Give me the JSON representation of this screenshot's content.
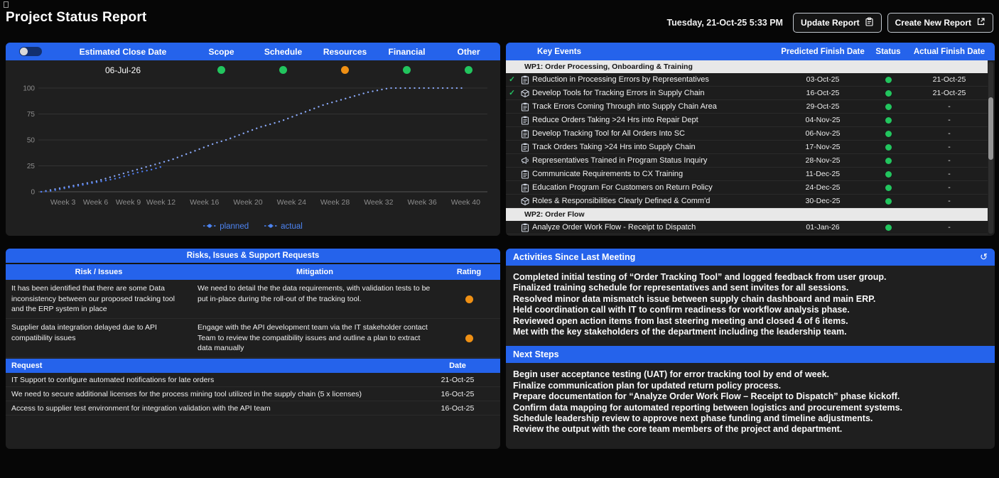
{
  "page": {
    "title": "Project Status Report",
    "datetime": "Tuesday, 21-Oct-25 5:33 PM"
  },
  "toolbar": {
    "update_label": "Update Report",
    "create_label": "Create New Report"
  },
  "status_panel": {
    "columns": [
      "Estimated Close Date",
      "Scope",
      "Schedule",
      "Resources",
      "Financial",
      "Other"
    ],
    "close_date": "06-Jul-26",
    "indicators": [
      {
        "label": "Scope",
        "color": "#22c55e"
      },
      {
        "label": "Schedule",
        "color": "#22c55e"
      },
      {
        "label": "Resources",
        "color": "#ef9014"
      },
      {
        "label": "Financial",
        "color": "#22c55e"
      },
      {
        "label": "Other",
        "color": "#22c55e"
      }
    ]
  },
  "chart_data": {
    "type": "line",
    "title": "",
    "xlabel": "",
    "ylabel": "",
    "ylim": [
      0,
      100
    ],
    "grid": "horizontal",
    "legend_position": "bottom",
    "y_ticks": [
      0,
      25,
      50,
      75,
      100
    ],
    "x_tick_labels": [
      "Week 3",
      "Week 6",
      "Week 9",
      "Week 12",
      "Week 16",
      "Week 20",
      "Week 24",
      "Week 28",
      "Week 32",
      "Week 36",
      "Week 40"
    ],
    "x_tick_weeks": [
      3,
      6,
      9,
      12,
      16,
      20,
      24,
      28,
      32,
      36,
      40
    ],
    "series": [
      {
        "name": "planned",
        "color": "#8aa9f9",
        "weeks": [
          1,
          2,
          3,
          4,
          5,
          6,
          7,
          8,
          9,
          10,
          11,
          12,
          13,
          14,
          15,
          16,
          17,
          18,
          19,
          20,
          21,
          22,
          23,
          24,
          25,
          26,
          27,
          28,
          29,
          30,
          31,
          32,
          33,
          34,
          35,
          36,
          37,
          38,
          39,
          40
        ],
        "values": [
          0,
          2,
          4,
          6,
          8,
          10,
          13,
          16,
          19,
          22,
          25,
          28,
          31,
          35,
          39,
          43,
          47,
          50,
          54,
          58,
          62,
          65,
          68,
          72,
          76,
          80,
          84,
          87,
          90,
          93,
          96,
          98,
          100,
          100,
          100,
          100,
          100,
          100,
          100,
          100
        ]
      },
      {
        "name": "actual",
        "color": "#4f7df0",
        "weeks": [
          1,
          2,
          3,
          4,
          5,
          6,
          7,
          8,
          9,
          10,
          11,
          12
        ],
        "values": [
          0,
          1,
          3,
          5,
          7,
          9,
          11,
          13,
          16,
          19,
          21,
          24
        ]
      }
    ]
  },
  "key_events": {
    "header": {
      "events": "Key Events",
      "predicted": "Predicted Finish Date",
      "status": "Status",
      "actual": "Actual Finish Date"
    },
    "groups": [
      {
        "title": "WP1: Order Processing, Onboarding & Training",
        "rows": [
          {
            "done": true,
            "icon": "clipboard",
            "label": "Reduction in Processing Errors by Representatives",
            "predicted": "03-Oct-25",
            "status_color": "#22c55e",
            "actual": "21-Oct-25"
          },
          {
            "done": true,
            "icon": "package",
            "label": "Develop Tools for Tracking Errors in Supply Chain",
            "predicted": "16-Oct-25",
            "status_color": "#22c55e",
            "actual": "21-Oct-25"
          },
          {
            "done": false,
            "icon": "clipboard",
            "label": "Track Errors Coming Through into Supply Chain Area",
            "predicted": "29-Oct-25",
            "status_color": "#22c55e",
            "actual": "-"
          },
          {
            "done": false,
            "icon": "clipboard",
            "label": "Reduce Orders Taking >24 Hrs into Repair Dept",
            "predicted": "04-Nov-25",
            "status_color": "#22c55e",
            "actual": "-"
          },
          {
            "done": false,
            "icon": "clipboard",
            "label": "Develop Tracking Tool for All Orders Into SC",
            "predicted": "06-Nov-25",
            "status_color": "#22c55e",
            "actual": "-"
          },
          {
            "done": false,
            "icon": "clipboard",
            "label": "Track Orders Taking >24 Hrs into Supply Chain",
            "predicted": "17-Nov-25",
            "status_color": "#22c55e",
            "actual": "-"
          },
          {
            "done": false,
            "icon": "megaphone",
            "label": "Representatives Trained in Program Status Inquiry",
            "predicted": "28-Nov-25",
            "status_color": "#22c55e",
            "actual": "-"
          },
          {
            "done": false,
            "icon": "clipboard",
            "label": "Communicate Requirements to CX Training",
            "predicted": "11-Dec-25",
            "status_color": "#22c55e",
            "actual": "-"
          },
          {
            "done": false,
            "icon": "clipboard",
            "label": "Education Program For Customers on Return Policy",
            "predicted": "24-Dec-25",
            "status_color": "#22c55e",
            "actual": "-"
          },
          {
            "done": false,
            "icon": "package",
            "label": "Roles & Responsibilities Clearly Defined & Comm'd",
            "predicted": "30-Dec-25",
            "status_color": "#22c55e",
            "actual": "-"
          }
        ]
      },
      {
        "title": "WP2: Order Flow",
        "rows": [
          {
            "done": false,
            "icon": "clipboard",
            "label": "Analyze Order Work Flow - Receipt to Dispatch",
            "predicted": "01-Jan-26",
            "status_color": "#22c55e",
            "actual": "-"
          }
        ]
      }
    ]
  },
  "risks": {
    "title": "Risks, Issues & Support Requests",
    "headers": [
      "Risk / Issues",
      "Mitigation",
      "Rating"
    ],
    "rows": [
      {
        "risk": "It has been identified that there are some Data inconsistency between our proposed tracking tool and the ERP system in place",
        "mitigation": "We need to detail the the data requirements, with validation tests to be put in-place during the roll-out of the tracking tool.",
        "rating_color": "#ef9014"
      },
      {
        "risk": "Supplier data integration delayed due to API compatibility issues",
        "mitigation": "Engage with the API development team via the IT stakeholder contact Team to review the compatibility issues and outline a plan to extract data manually",
        "rating_color": "#ef9014"
      }
    ],
    "request_headers": [
      "Request",
      "Date"
    ],
    "requests": [
      {
        "request": "IT Support to configure automated notifications for late orders",
        "date": "21-Oct-25"
      },
      {
        "request": "We need to secure additional licenses for the process mining tool utilized in the supply chain (5 x licenses)",
        "date": "16-Oct-25"
      },
      {
        "request": "Access to supplier test environment for integration validation with the API team",
        "date": "16-Oct-25"
      }
    ]
  },
  "activities": {
    "title": "Activities Since Last Meeting",
    "refresh_icon": "↺",
    "lines": [
      "Completed initial testing of “Order Tracking Tool” and logged feedback from user group.",
      "Finalized training schedule for representatives and sent invites for all sessions.",
      "Resolved minor data mismatch issue between supply chain dashboard and main ERP.",
      "Held coordination call with IT to confirm readiness for workflow analysis phase.",
      "Reviewed open action items from last steering meeting and closed 4 of 6 items.",
      "Met with the key stakeholders of the department including the leadership team."
    ]
  },
  "next_steps": {
    "title": "Next Steps",
    "lines": [
      "Begin user acceptance testing (UAT) for error tracking tool by end of week.",
      "Finalize communication plan for updated return policy process.",
      "Prepare documentation for “Analyze Order Work Flow – Receipt to Dispatch” phase kickoff.",
      "Confirm data mapping for automated reporting between logistics and procurement systems.",
      "Schedule leadership review to approve next phase funding and timeline adjustments.",
      "Review the output with the core team members of the project and department."
    ]
  }
}
